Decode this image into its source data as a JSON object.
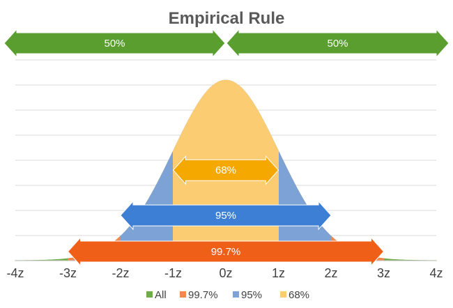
{
  "chart_data": {
    "type": "area",
    "title": "Empirical Rule",
    "x_ticks": [
      "-4z",
      "-3z",
      "-2z",
      "-1z",
      "0z",
      "1z",
      "2z",
      "3z",
      "4z"
    ],
    "xlim": [
      -4,
      4
    ],
    "ylim": [
      0,
      0.45
    ],
    "grid": true,
    "legend_position": "bottom",
    "series": [
      {
        "name": "All",
        "range": [
          -4,
          4
        ],
        "color": "#70ad47"
      },
      {
        "name": "99.7%",
        "range": [
          -3,
          3
        ],
        "color": "#f4874b"
      },
      {
        "name": "95%",
        "range": [
          -2,
          2
        ],
        "color": "#7da3d6"
      },
      {
        "name": "68%",
        "range": [
          -1,
          1
        ],
        "color": "#fccc73"
      }
    ],
    "arrows": [
      {
        "label": "50%",
        "from": -4,
        "to": 0,
        "color": "#5a9e2f",
        "row": "top"
      },
      {
        "label": "50%",
        "from": 0,
        "to": 4,
        "color": "#5a9e2f",
        "row": "top"
      },
      {
        "label": "68%",
        "from": -1,
        "to": 1,
        "color": "#f5a800",
        "row": "y",
        "y": 0.2
      },
      {
        "label": "95%",
        "from": -2,
        "to": 2,
        "color": "#3d7fd4",
        "row": "y",
        "y": 0.1
      },
      {
        "label": "99.7%",
        "from": -3,
        "to": 3,
        "color": "#ef5f18",
        "row": "y",
        "y": 0.02
      }
    ]
  }
}
